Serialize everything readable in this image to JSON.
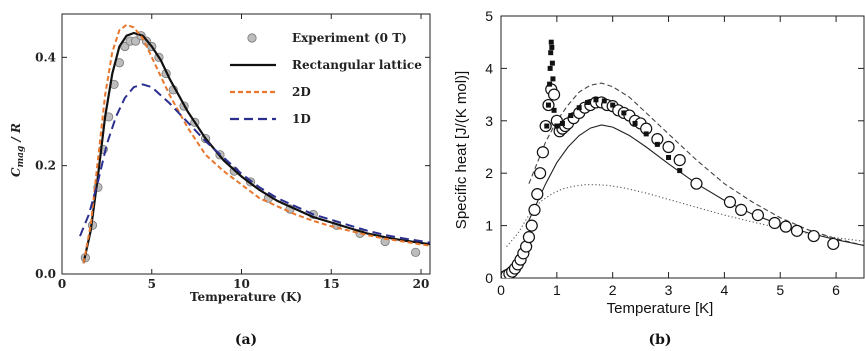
{
  "chart_data": [
    {
      "panel": "a",
      "type": "line",
      "caption": "(a)",
      "xlabel": "Temperature (K)",
      "ylabel": "C_mag / R",
      "ylabel_main": "C",
      "ylabel_sub": "mag",
      "ylabel_rest": " / R",
      "xlim": [
        0,
        20.5
      ],
      "ylim": [
        0,
        0.48
      ],
      "xticks": [
        0,
        5,
        10,
        15,
        20
      ],
      "xtick_labels": [
        "0",
        "5",
        "10",
        "15",
        "20"
      ],
      "yticks": [
        0,
        0.2,
        0.4
      ],
      "ytick_labels": [
        "0.0",
        "0.2",
        "0.4"
      ],
      "legend_position": "top-right",
      "series": [
        {
          "name": "Experiment (0 T)",
          "kind": "scatter",
          "color": "#bdbdbd",
          "x": [
            1.3,
            1.7,
            2.0,
            2.3,
            2.6,
            2.9,
            3.2,
            3.5,
            3.8,
            4.1,
            4.4,
            4.7,
            5.0,
            5.4,
            5.8,
            6.2,
            6.8,
            7.4,
            8.0,
            8.8,
            9.6,
            10.5,
            11.5,
            12.7,
            14.0,
            15.3,
            16.6,
            18.0,
            19.7
          ],
          "y": [
            0.03,
            0.09,
            0.16,
            0.23,
            0.29,
            0.35,
            0.39,
            0.42,
            0.43,
            0.43,
            0.44,
            0.43,
            0.42,
            0.4,
            0.37,
            0.34,
            0.31,
            0.28,
            0.25,
            0.22,
            0.19,
            0.17,
            0.14,
            0.12,
            0.11,
            0.09,
            0.075,
            0.06,
            0.04
          ]
        },
        {
          "name": "Rectangular lattice",
          "kind": "line",
          "color": "#111111",
          "dash": "",
          "x": [
            1.2,
            1.6,
            2.0,
            2.4,
            2.8,
            3.2,
            3.6,
            4.0,
            4.5,
            5.0,
            5.5,
            6.0,
            6.5,
            7.0,
            8.0,
            9.0,
            10.0,
            11.0,
            12.0,
            13.0,
            14.0,
            15.0,
            16.0,
            17.0,
            18.0,
            19.0,
            20.5
          ],
          "y": [
            0.02,
            0.08,
            0.18,
            0.29,
            0.37,
            0.42,
            0.44,
            0.445,
            0.44,
            0.42,
            0.395,
            0.36,
            0.33,
            0.3,
            0.25,
            0.21,
            0.18,
            0.155,
            0.135,
            0.12,
            0.105,
            0.095,
            0.085,
            0.075,
            0.068,
            0.062,
            0.055
          ]
        },
        {
          "name": "2D",
          "kind": "line",
          "color": "#e8762c",
          "dash": "5,3",
          "x": [
            1.2,
            1.6,
            2.0,
            2.4,
            2.8,
            3.2,
            3.6,
            4.0,
            4.5,
            5.0,
            5.5,
            6.0,
            6.5,
            7.0,
            8.0,
            9.0,
            10.0,
            11.0,
            12.0,
            13.0,
            14.0,
            15.0,
            16.0,
            17.0,
            18.0,
            19.0,
            20.5
          ],
          "y": [
            0.02,
            0.09,
            0.21,
            0.33,
            0.41,
            0.45,
            0.46,
            0.455,
            0.435,
            0.4,
            0.365,
            0.33,
            0.3,
            0.27,
            0.22,
            0.19,
            0.165,
            0.14,
            0.125,
            0.11,
            0.098,
            0.088,
            0.08,
            0.072,
            0.065,
            0.06,
            0.052
          ]
        },
        {
          "name": "1D",
          "kind": "line",
          "color": "#2b2f8f",
          "dash": "9,5",
          "x": [
            1.0,
            1.5,
            2.0,
            2.5,
            3.0,
            3.5,
            4.0,
            4.5,
            5.0,
            5.5,
            6.0,
            7.0,
            8.0,
            9.0,
            10.0,
            11.0,
            12.0,
            13.0,
            14.0,
            15.0,
            16.0,
            17.0,
            18.0,
            19.0,
            20.5
          ],
          "y": [
            0.07,
            0.11,
            0.17,
            0.24,
            0.29,
            0.325,
            0.345,
            0.35,
            0.345,
            0.33,
            0.315,
            0.28,
            0.245,
            0.215,
            0.185,
            0.16,
            0.14,
            0.125,
            0.11,
            0.1,
            0.09,
            0.08,
            0.072,
            0.066,
            0.058
          ]
        }
      ]
    },
    {
      "panel": "b",
      "type": "scatter",
      "caption": "(b)",
      "xlabel": "Temperature [K]",
      "ylabel": "Specific heat [J/(K mol)]",
      "xlim": [
        0,
        6.5
      ],
      "ylim": [
        0,
        5
      ],
      "xticks": [
        0,
        1,
        2,
        3,
        4,
        5,
        6
      ],
      "xtick_labels": [
        "0",
        "1",
        "2",
        "3",
        "4",
        "5",
        "6"
      ],
      "yticks": [
        0,
        1,
        2,
        3,
        4,
        5
      ],
      "ytick_labels": [
        "0",
        "1",
        "2",
        "3",
        "4",
        "5"
      ],
      "series": [
        {
          "kind": "circles-large",
          "color": "#111111",
          "x": [
            0.05,
            0.1,
            0.15,
            0.2,
            0.25,
            0.3,
            0.35,
            0.4,
            0.45,
            0.5,
            0.55,
            0.6,
            0.65,
            0.7,
            0.75,
            0.8,
            0.85,
            0.9,
            0.95,
            1.0,
            1.05,
            1.1,
            1.15,
            1.2,
            1.3,
            1.4,
            1.5,
            1.6,
            1.7,
            1.8,
            1.9,
            2.0,
            2.1,
            2.2,
            2.3,
            2.4,
            2.5,
            2.6,
            2.8,
            3.0,
            3.2,
            3.5,
            4.1,
            4.3,
            4.6,
            4.9,
            5.1,
            5.3,
            5.6,
            5.95
          ],
          "y": [
            0.02,
            0.05,
            0.08,
            0.12,
            0.18,
            0.26,
            0.35,
            0.47,
            0.6,
            0.78,
            1.0,
            1.3,
            1.6,
            2.0,
            2.4,
            2.9,
            3.3,
            3.6,
            3.5,
            3.0,
            2.8,
            2.85,
            2.9,
            2.95,
            3.05,
            3.15,
            3.25,
            3.3,
            3.35,
            3.35,
            3.3,
            3.28,
            3.2,
            3.15,
            3.1,
            3.0,
            2.95,
            2.85,
            2.65,
            2.5,
            2.25,
            1.8,
            1.45,
            1.3,
            1.2,
            1.05,
            0.98,
            0.9,
            0.8,
            0.65
          ]
        },
        {
          "kind": "squares-small",
          "color": "#111111",
          "x": [
            0.82,
            0.85,
            0.87,
            0.88,
            0.89,
            0.9,
            0.91,
            0.92,
            0.93,
            0.95,
            1.0,
            1.1,
            1.25,
            1.4,
            1.55,
            1.7,
            1.85,
            2.0,
            2.2,
            2.4,
            2.6,
            2.8,
            3.0,
            3.2
          ],
          "y": [
            2.9,
            3.3,
            3.7,
            4.0,
            4.3,
            4.5,
            4.4,
            4.1,
            3.8,
            3.2,
            2.9,
            2.95,
            3.1,
            3.25,
            3.35,
            3.4,
            3.38,
            3.3,
            3.15,
            2.95,
            2.75,
            2.55,
            2.3,
            2.05
          ]
        },
        {
          "kind": "line",
          "style": "dashed",
          "color": "#444444",
          "x": [
            0.5,
            0.8,
            1.0,
            1.2,
            1.4,
            1.6,
            1.8,
            2.0,
            2.3,
            2.6,
            3.0,
            3.5,
            4.0,
            4.5,
            5.0,
            5.5,
            6.0,
            6.5
          ],
          "y": [
            1.8,
            2.6,
            3.0,
            3.3,
            3.55,
            3.68,
            3.72,
            3.65,
            3.45,
            3.15,
            2.75,
            2.25,
            1.8,
            1.45,
            1.15,
            0.92,
            0.75,
            0.62
          ]
        },
        {
          "kind": "line",
          "style": "solid",
          "color": "#222222",
          "x": [
            0.5,
            0.8,
            1.0,
            1.2,
            1.4,
            1.6,
            1.8,
            2.0,
            2.3,
            2.6,
            3.0,
            3.5,
            4.0,
            4.5,
            5.0,
            5.5,
            6.0,
            6.5
          ],
          "y": [
            1.1,
            1.8,
            2.2,
            2.5,
            2.72,
            2.86,
            2.92,
            2.88,
            2.72,
            2.5,
            2.18,
            1.8,
            1.48,
            1.22,
            1.02,
            0.86,
            0.73,
            0.62
          ]
        },
        {
          "kind": "line",
          "style": "dotted",
          "color": "#555555",
          "x": [
            0.1,
            0.3,
            0.5,
            0.7,
            0.9,
            1.1,
            1.3,
            1.5,
            1.7,
            1.9,
            2.2,
            2.6,
            3.0,
            3.5,
            4.0,
            4.5,
            5.0,
            5.5,
            6.0,
            6.5
          ],
          "y": [
            0.6,
            0.85,
            1.2,
            1.45,
            1.6,
            1.7,
            1.75,
            1.78,
            1.78,
            1.77,
            1.72,
            1.62,
            1.5,
            1.35,
            1.2,
            1.07,
            0.95,
            0.85,
            0.77,
            0.7
          ]
        }
      ]
    }
  ]
}
